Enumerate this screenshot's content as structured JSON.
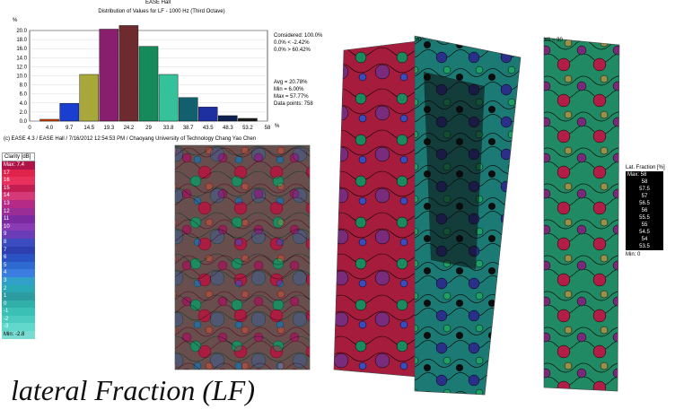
{
  "histogram": {
    "window_title": "EASE Hall",
    "title": "Distribution of Values for LF - 1000 Hz (Third Octave)",
    "y_unit": "%",
    "x_unit": "%",
    "y_ticks": [
      "20.0",
      "18.0",
      "16.0",
      "14.0",
      "12.0",
      "10.0",
      "8.0",
      "6.0",
      "4.0",
      "2.0",
      "0.0"
    ],
    "x_ticks": [
      "0",
      "4.0",
      "9.7",
      "14.5",
      "19.3",
      "24.2",
      "29",
      "33.8",
      "38.7",
      "43.5",
      "48.3",
      "53.2",
      "58"
    ],
    "bar_values": [
      0.4,
      3.9,
      10.3,
      20.3,
      21.1,
      16.5,
      10.3,
      5.2,
      3.1,
      1.2,
      0.6
    ],
    "bar_colors": [
      "#d04000",
      "#1a3fd0",
      "#a8a83a",
      "#8a1e6e",
      "#6d2b30",
      "#168a5a",
      "#35c29a",
      "#12606e",
      "#1e2fa0",
      "#0e2050",
      "#1a1a1a"
    ],
    "stats": {
      "considered": "Considered: 100.0%",
      "below": "0.0% < -2.42%",
      "above": "0.0% > 60.42%",
      "avg": "Avg = 20.78%",
      "min": "Min = 6.00%",
      "max": "Max = 57.77%",
      "points": "Data points: 758"
    }
  },
  "footer": "(c) EASE 4.3 / EASE Hall / 7/16/2012 12:54:53 PM / Chaoyang University of Technology Chang Yao Chen",
  "clarity_scale": {
    "header": "Clarity [dB]",
    "max_label": "Max: 7.4",
    "min_label": "Min: -2.8",
    "levels": [
      "17",
      "16",
      "15",
      "14",
      "13",
      "12",
      "11",
      "10",
      "9",
      "8",
      "7",
      "6",
      "5",
      "4",
      "3",
      "2",
      "1",
      "0",
      "-1",
      "-2",
      "-3"
    ],
    "colors": [
      "#e0234a",
      "#e8305c",
      "#c21e52",
      "#d43a78",
      "#b42a86",
      "#9a2d96",
      "#7c2aa0",
      "#8a3ab2",
      "#6a3cb8",
      "#3a4cc0",
      "#2d3fae",
      "#2a52c2",
      "#2f6ad0",
      "#3a7ce0",
      "#31a0c8",
      "#2aa8b4",
      "#2c9ca0",
      "#30b0a8",
      "#3ac0b4",
      "#4cccc0",
      "#60d8cc"
    ]
  },
  "lf_scale": {
    "header": "Lat. Fraction [%]",
    "max_label": "Max: 58",
    "min_label": "Min: 0",
    "levels": [
      "58",
      "57.5",
      "57",
      "56.5",
      "56",
      "55.5",
      "55",
      "54.5",
      "54",
      "53.5"
    ]
  },
  "panels": {
    "label_a": "Y0 ~ ...",
    "label_b": "Y0 ~ 30"
  },
  "caption": "lateral Fraction (LF)"
}
